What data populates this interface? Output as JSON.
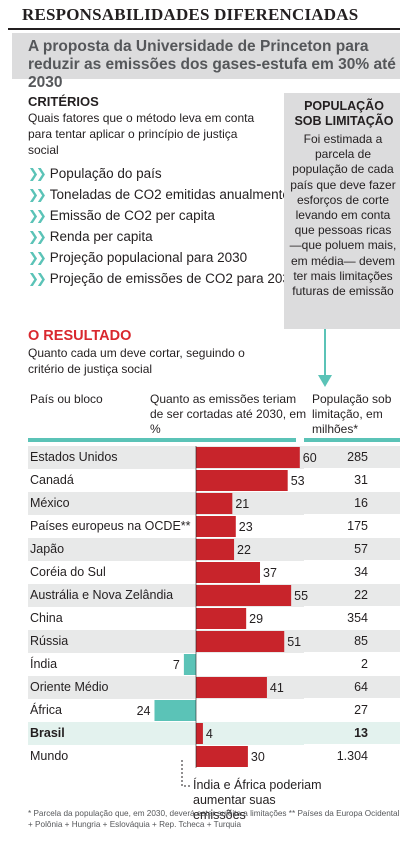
{
  "headline": "RESPONSABILIDADES DIFERENCIADAS",
  "subhead": "A proposta da Universidade de Princeton para reduzir as emissões dos gases-estufa em 30% até 2030",
  "criteria": {
    "title": "CRITÉRIOS",
    "desc": "Quais fatores que o método leva em conta para tentar aplicar o princípio de justiça social",
    "items": [
      "População do país",
      "Toneladas de CO2 emitidas anualmente",
      "Emissão de CO2 per capita",
      "Renda per capita",
      "Projeção populacional para 2030",
      "Projeção de emissões de CO2 para 2030"
    ]
  },
  "box": {
    "title": "POPULAÇÃO SOB LIMITAÇÃO",
    "text": "Foi estimada a parcela de população de cada país que deve fazer esforços de corte levando em conta que pessoas ricas —que poluem mais, em média— devem ter mais limitações futuras de emissão"
  },
  "result": {
    "title": "O RESULTADO",
    "desc": "Quanto cada um deve cortar, seguindo o critério de justiça social"
  },
  "columns": {
    "country": "País ou bloco",
    "cut": "Quanto as emissões teriam de ser cortadas até 2030, em %",
    "population": "População sob limitação, em milhões*"
  },
  "chart_data": {
    "type": "bar",
    "title": "Quanto as emissões teriam de ser cortadas até 2030, em %",
    "categories": [
      "Estados Unidos",
      "Canadá",
      "México",
      "Países europeus na OCDE**",
      "Japão",
      "Coréia do Sul",
      "Austrália e Nova Zelândia",
      "China",
      "Rússia",
      "Índia",
      "Oriente Médio",
      "África",
      "Brasil",
      "Mundo"
    ],
    "series": [
      {
        "values": [
          60,
          53,
          21,
          23,
          22,
          37,
          55,
          29,
          51,
          7,
          41,
          24,
          4,
          30
        ]
      }
    ],
    "signs": [
      "cut",
      "cut",
      "cut",
      "cut",
      "cut",
      "cut",
      "cut",
      "cut",
      "cut",
      "increase",
      "cut",
      "increase",
      "cut",
      "cut"
    ],
    "population_millions": [
      "285",
      "31",
      "16",
      "175",
      "57",
      "34",
      "22",
      "354",
      "85",
      "2",
      "64",
      "27",
      "13",
      "1.304"
    ],
    "colors": {
      "cut": "#c8242b",
      "increase": "#5bc3b7",
      "accent": "#5bc3b7",
      "highlight": "#d9282e"
    },
    "highlight_row": "Brasil"
  },
  "note_india": "Índia e África poderiam aumentar suas emissões",
  "footnote": "* Parcela da população que, em 2030, deverá estar sujeita a limitações   ** Países da Europa Ocidental + Polônia + Hungria + Eslováquia + Rep. Tcheca + Turquia"
}
